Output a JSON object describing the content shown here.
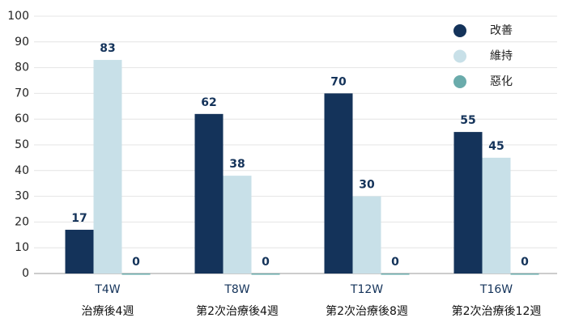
{
  "chart_data": {
    "type": "bar",
    "categories": [
      [
        "T4W",
        "治療後4週"
      ],
      [
        "T8W",
        "第2次治療後4週"
      ],
      [
        "T12W",
        "第2次治療後8週"
      ],
      [
        "T16W",
        "第2次治療後12週"
      ]
    ],
    "series": [
      {
        "name": "改善",
        "color": "#14335a",
        "values": [
          17,
          62,
          70,
          55
        ]
      },
      {
        "name": "維持",
        "color": "#c8e0e8",
        "values": [
          83,
          38,
          30,
          45
        ]
      },
      {
        "name": "惡化",
        "color": "#6aabab",
        "values": [
          0,
          0,
          0,
          0
        ]
      }
    ],
    "ylim": [
      0,
      100
    ],
    "yticks": [
      0,
      10,
      20,
      30,
      40,
      50,
      60,
      70,
      80,
      90,
      100
    ],
    "grid": true,
    "legend": "top-right"
  }
}
